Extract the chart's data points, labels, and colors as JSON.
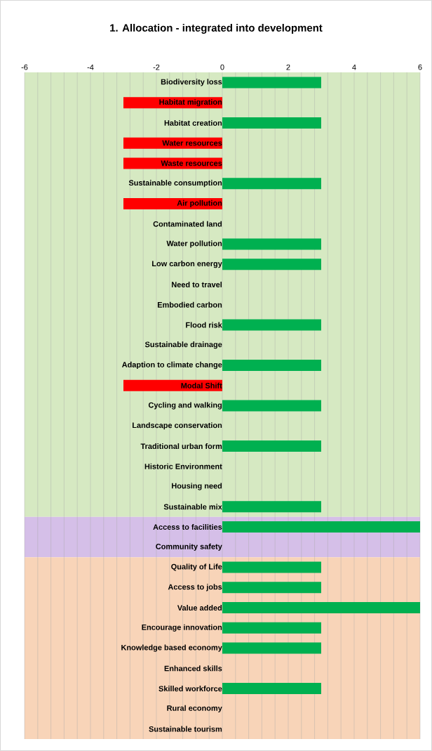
{
  "chart_data": {
    "type": "bar",
    "orientation": "horizontal",
    "title": "1. Allocation - integrated into development",
    "categories": [
      "Biodiversity loss",
      "Habitat migration",
      "Habitat creation",
      "Water resources",
      "Waste resources",
      "Sustainable consumption",
      "Air pollution",
      "Contaminated land",
      "Water pollution",
      "Low carbon energy",
      "Need to travel",
      "Embodied carbon",
      "Flood risk",
      "Sustainable drainage",
      "Adaption to climate change",
      "Modal Shift",
      "Cycling and walking",
      "Landscape conservation",
      "Traditional urban form",
      "Historic Environment",
      "Housing need",
      "Sustainable mix",
      "Access to facilities",
      "Community safety",
      "Quality of Life",
      "Access to jobs",
      "Value added",
      "Encourage innovation",
      "Knowledge based economy",
      "Enhanced skills",
      "Skilled workforce",
      "Rural economy",
      "Sustainable tourism"
    ],
    "values": [
      3,
      -3,
      3,
      -3,
      -3,
      3,
      -3,
      0,
      3,
      3,
      0,
      0,
      3,
      0,
      3,
      -3,
      3,
      0,
      3,
      0,
      0,
      3,
      6,
      0,
      3,
      3,
      6,
      3,
      3,
      0,
      3,
      0,
      0
    ],
    "colors": [
      "#00b050",
      "#ff0000",
      "#00b050",
      "#ff0000",
      "#ff0000",
      "#00b050",
      "#ff0000",
      "#00b050",
      "#00b050",
      "#00b050",
      "#00b050",
      "#00b050",
      "#00b050",
      "#00b050",
      "#00b050",
      "#ff0000",
      "#00b050",
      "#00b050",
      "#00b050",
      "#00b050",
      "#00b050",
      "#00b050",
      "#00b050",
      "#00b050",
      "#00b050",
      "#00b050",
      "#00b050",
      "#00b050",
      "#00b050",
      "#00b050",
      "#00b050",
      "#00b050",
      "#00b050"
    ],
    "xlim": [
      -6,
      6
    ],
    "xticks": [
      -6,
      -4,
      -2,
      0,
      2,
      4,
      6
    ],
    "grid": "x",
    "bands": [
      {
        "axis": "y",
        "from": "Biodiversity loss",
        "to": "Sustainable mix",
        "color": "#d6e9c2"
      },
      {
        "axis": "y",
        "from": "Access to facilities",
        "to": "Community safety",
        "color": "#d5bfe8"
      },
      {
        "axis": "y",
        "from": "Quality of Life",
        "to": "Sustainable tourism",
        "color": "#f8d4b8"
      }
    ]
  }
}
